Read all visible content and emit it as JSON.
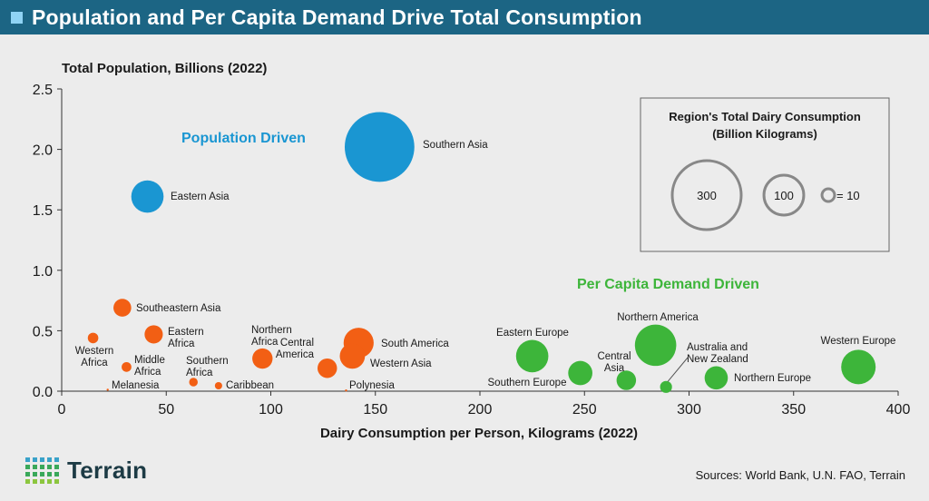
{
  "header": {
    "title": "Population and Per Capita Demand Drive Total Consumption"
  },
  "colors": {
    "population": "#1a96d2",
    "low": "#f25f14",
    "per_capita": "#3db53a",
    "header_bg": "#1c6584"
  },
  "chart_data": {
    "type": "bubble",
    "ylabel": "Total Population, Billions (2022)",
    "xlabel": "Dairy Consumption per Person, Kilograms (2022)",
    "xlim": [
      0,
      400
    ],
    "ylim": [
      0,
      2.5
    ],
    "xticks": [
      0,
      50,
      100,
      150,
      200,
      250,
      300,
      350,
      400
    ],
    "yticks": [
      0.0,
      0.5,
      1.0,
      1.5,
      2.0,
      2.5
    ],
    "ytick_labels": [
      "0.0",
      "0.5",
      "1.0",
      "1.5",
      "2.0",
      "2.5"
    ],
    "grid": false,
    "size_metric": "Region's Total Dairy Consumption (Billion Kilograms)",
    "groups": [
      {
        "name": "Population Driven",
        "color": "#1a96d2"
      },
      {
        "name": "Per Capita Demand Driven",
        "color": "#3db53a"
      },
      {
        "name": "Lower consumption",
        "color": "#f25f14"
      }
    ],
    "points": [
      {
        "label": "Southern Asia",
        "x": 152,
        "y": 2.02,
        "size": 306,
        "group": "population"
      },
      {
        "label": "Eastern Asia",
        "x": 41,
        "y": 1.61,
        "size": 66,
        "group": "population"
      },
      {
        "label": "Southeastern Asia",
        "x": 29,
        "y": 0.69,
        "size": 20,
        "group": "low"
      },
      {
        "label": "Western Africa",
        "x": 15,
        "y": 0.44,
        "size": 7,
        "group": "low"
      },
      {
        "label": "Eastern Africa",
        "x": 44,
        "y": 0.47,
        "size": 21,
        "group": "low"
      },
      {
        "label": "Middle Africa",
        "x": 31,
        "y": 0.2,
        "size": 6,
        "group": "low"
      },
      {
        "label": "Melanesia",
        "x": 22,
        "y": 0.012,
        "size": 0.3,
        "group": "low"
      },
      {
        "label": "Southern Africa",
        "x": 63,
        "y": 0.075,
        "size": 4.7,
        "group": "low"
      },
      {
        "label": "Caribbean",
        "x": 75,
        "y": 0.045,
        "size": 3.4,
        "group": "low"
      },
      {
        "label": "Northern Africa",
        "x": 96,
        "y": 0.27,
        "size": 26,
        "group": "low"
      },
      {
        "label": "Central America",
        "x": 127,
        "y": 0.19,
        "size": 24,
        "group": "low"
      },
      {
        "label": "South America",
        "x": 142,
        "y": 0.4,
        "size": 57,
        "group": "low"
      },
      {
        "label": "Western Asia",
        "x": 139,
        "y": 0.29,
        "size": 40,
        "group": "low"
      },
      {
        "label": "Polynesia",
        "x": 136,
        "y": 0.006,
        "size": 0.2,
        "group": "low"
      },
      {
        "label": "Eastern Europe",
        "x": 225,
        "y": 0.29,
        "size": 66,
        "group": "per_capita"
      },
      {
        "label": "Southern Europe",
        "x": 248,
        "y": 0.15,
        "size": 37,
        "group": "per_capita"
      },
      {
        "label": "Central Asia",
        "x": 270,
        "y": 0.09,
        "size": 24,
        "group": "per_capita"
      },
      {
        "label": "Northern America",
        "x": 284,
        "y": 0.38,
        "size": 108,
        "group": "per_capita"
      },
      {
        "label": "Australia and New Zealand",
        "x": 289,
        "y": 0.035,
        "size": 9,
        "group": "per_capita"
      },
      {
        "label": "Northern Europe",
        "x": 313,
        "y": 0.11,
        "size": 34,
        "group": "per_capita"
      },
      {
        "label": "Western Europe",
        "x": 381,
        "y": 0.2,
        "size": 75,
        "group": "per_capita"
      }
    ],
    "annotations": [
      {
        "text": "Population Driven",
        "group": "population"
      },
      {
        "text": "Per Capita Demand Driven",
        "group": "per_capita"
      }
    ],
    "legend": {
      "title_line1": "Region's Total Dairy Consumption",
      "title_line2": "(Billion Kilograms)",
      "position": "top-right",
      "items": [
        {
          "value": 300,
          "label": "300"
        },
        {
          "value": 100,
          "label": "100"
        },
        {
          "value": 10,
          "label": "= 10"
        }
      ]
    }
  },
  "footer": {
    "logo_text": "Terrain",
    "sources": "Sources: World Bank, U.N. FAO, Terrain"
  }
}
